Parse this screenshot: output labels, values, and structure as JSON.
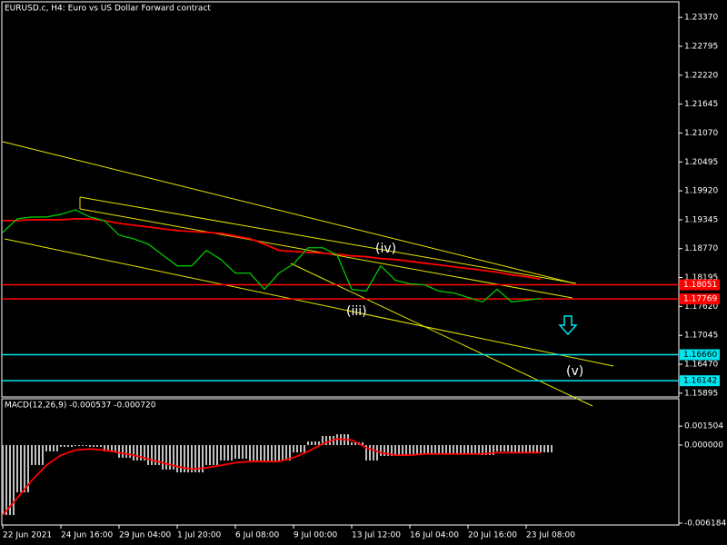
{
  "chart_data": [
    {
      "type": "line",
      "title": "EURUSD.c, H4:  Euro vs US Dollar Forward contract",
      "categories": [
        "22 Jun 2021",
        null,
        null,
        null,
        "24 Jun 16:00",
        null,
        null,
        null,
        "29 Jun 04:00",
        null,
        null,
        null,
        "1 Jul 20:00",
        null,
        null,
        null,
        "6 Jul 08:00",
        null,
        null,
        null,
        "9 Jul 00:00",
        null,
        null,
        null,
        "13 Jul 12:00",
        null,
        null,
        null,
        "16 Jul 04:00",
        null,
        null,
        null,
        "20 Jul 16:00",
        null,
        null,
        null,
        "23 Jul 08:00",
        null
      ],
      "series": [
        {
          "color": "#00c800",
          "values": [
            1.19093,
            1.19363,
            1.19399,
            1.19399,
            1.19453,
            1.19542,
            1.19399,
            1.19327,
            1.19039,
            1.18967,
            1.1886,
            1.18644,
            1.18428,
            1.18428,
            1.18734,
            1.18554,
            1.18284,
            1.18284,
            1.17961,
            1.18284,
            1.18464,
            1.18788,
            1.18788,
            1.18644,
            1.17961,
            1.17925,
            1.18428,
            1.18141,
            1.18069,
            1.18051,
            1.17925,
            1.17889,
            1.17799,
            1.17709,
            1.17961,
            1.17709,
            1.17745,
            1.17781
          ]
        },
        {
          "color": "#ff0000",
          "values": [
            1.19327,
            1.19327,
            1.19345,
            1.19345,
            1.19345,
            1.19363,
            1.19363,
            1.19327,
            1.19273,
            1.19237,
            1.19201,
            1.19165,
            1.19129,
            1.19111,
            1.19093,
            1.19075,
            1.19021,
            1.18967,
            1.1886,
            1.18734,
            1.18716,
            1.18698,
            1.1868,
            1.18662,
            1.18626,
            1.18608,
            1.18572,
            1.18554,
            1.18518,
            1.18482,
            1.18446,
            1.1841,
            1.18374,
            1.18338,
            1.18303,
            1.18249,
            1.18213,
            1.18159
          ]
        }
      ],
      "levels": [
        {
          "value": 1.18051,
          "label": "1.18051",
          "color": "#ff0000"
        },
        {
          "value": 1.17769,
          "label": "1.17769",
          "color": "#ff0000"
        },
        {
          "value": 1.1666,
          "label": "1.16660",
          "color": "#00e5ee"
        },
        {
          "value": 1.16142,
          "label": "1.16142",
          "color": "#00e5ee"
        }
      ],
      "annotations": [
        "(iv)",
        "(iii)",
        "(v)"
      ],
      "ylim": [
        1.1582,
        1.2368
      ],
      "yticks": [
        {
          "value": 1.2337,
          "label": "1.23370"
        },
        {
          "value": 1.22795,
          "label": "1.22795"
        },
        {
          "value": 1.2222,
          "label": "1.22220"
        },
        {
          "value": 1.21645,
          "label": "1.21645"
        },
        {
          "value": 1.2107,
          "label": "1.21070"
        },
        {
          "value": 1.20495,
          "label": "1.20495"
        },
        {
          "value": 1.1992,
          "label": "1.19920"
        },
        {
          "value": 1.19345,
          "label": "1.19345"
        },
        {
          "value": 1.1877,
          "label": "1.18770"
        },
        {
          "value": 1.18195,
          "label": "1.18195"
        },
        {
          "value": 1.1762,
          "label": "1.17620"
        },
        {
          "value": 1.17045,
          "label": "1.17045"
        },
        {
          "value": 1.1647,
          "label": "1.16470"
        },
        {
          "value": 1.15895,
          "label": "1.15895"
        }
      ]
    },
    {
      "type": "macd",
      "title": "MACD(12,26,9) -0.000537 -0.000720",
      "series": [
        {
          "color": "#c0c0c0",
          "values": [
            -0.00554,
            -0.00374,
            -0.00158,
            -0.0005,
            -0.00014,
            -7e-05,
            -0.00014,
            -0.0005,
            -0.001,
            -0.00122,
            -0.00158,
            -0.00194,
            -0.00216,
            -0.00216,
            -0.00158,
            -0.00122,
            -0.00108,
            -0.00122,
            -0.00137,
            -0.00122,
            -0.00058,
            0.00029,
            0.00072,
            0.00086,
            0.00022,
            -0.00122,
            -0.00086,
            -0.00086,
            -0.00072,
            -0.00065,
            -0.00065,
            -0.00065,
            -0.00072,
            -0.00079,
            -0.0005,
            -0.00065,
            -0.00065,
            -0.00058
          ]
        },
        {
          "color": "#ff0000",
          "values": [
            -0.00554,
            -0.0042,
            -0.0028,
            -0.0016,
            -0.0008,
            -0.0004,
            -0.0003,
            -0.0004,
            -0.0006,
            -0.0008,
            -0.0011,
            -0.0014,
            -0.0017,
            -0.0019,
            -0.0018,
            -0.0016,
            -0.0014,
            -0.0013,
            -0.0013,
            -0.0013,
            -0.001,
            -0.0005,
            0.0001,
            0.0005,
            0.0004,
            -0.0002,
            -0.0006,
            -0.0008,
            -0.0008,
            -0.0007,
            -0.0007,
            -0.0007,
            -0.0007,
            -0.0007,
            -0.0006,
            -0.0006,
            -0.0006,
            -0.0006
          ]
        }
      ],
      "ylim": [
        -0.00633,
        0.00367
      ],
      "yticks": [
        0.001504,
        {
          "value": 0,
          "label": "0.000000"
        },
        -0.006184
      ]
    }
  ]
}
